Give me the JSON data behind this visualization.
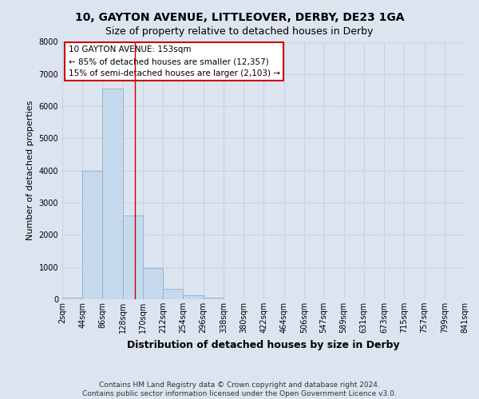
{
  "title": "10, GAYTON AVENUE, LITTLEOVER, DERBY, DE23 1GA",
  "subtitle": "Size of property relative to detached houses in Derby",
  "xlabel": "Distribution of detached houses by size in Derby",
  "ylabel": "Number of detached properties",
  "bin_edges": [
    2,
    44,
    86,
    128,
    170,
    212,
    254,
    296,
    338,
    380,
    422,
    464,
    506,
    547,
    589,
    631,
    673,
    715,
    757,
    799,
    841
  ],
  "bin_labels": [
    "2sqm",
    "44sqm",
    "86sqm",
    "128sqm",
    "170sqm",
    "212sqm",
    "254sqm",
    "296sqm",
    "338sqm",
    "380sqm",
    "422sqm",
    "464sqm",
    "506sqm",
    "547sqm",
    "589sqm",
    "631sqm",
    "673sqm",
    "715sqm",
    "757sqm",
    "799sqm",
    "841sqm"
  ],
  "counts": [
    60,
    4000,
    6550,
    2600,
    960,
    325,
    120,
    55,
    0,
    0,
    0,
    0,
    0,
    0,
    0,
    0,
    0,
    0,
    0,
    0
  ],
  "bar_color": "#c6d9ec",
  "bar_edge_color": "#8ab0cc",
  "ylim": [
    0,
    8000
  ],
  "yticks": [
    0,
    1000,
    2000,
    3000,
    4000,
    5000,
    6000,
    7000,
    8000
  ],
  "property_line_x": 153,
  "annotation_title": "10 GAYTON AVENUE: 153sqm",
  "annotation_line1": "← 85% of detached houses are smaller (12,357)",
  "annotation_line2": "15% of semi-detached houses are larger (2,103) →",
  "annotation_box_facecolor": "#ffffff",
  "annotation_box_edgecolor": "#cc0000",
  "grid_color": "#c8d4e4",
  "background_color": "#dce4f0",
  "plot_bg_color": "#dce4f0",
  "footer_line1": "Contains HM Land Registry data © Crown copyright and database right 2024.",
  "footer_line2": "Contains public sector information licensed under the Open Government Licence v3.0.",
  "title_fontsize": 10,
  "subtitle_fontsize": 9,
  "xlabel_fontsize": 9,
  "ylabel_fontsize": 8,
  "tick_fontsize": 7,
  "annotation_fontsize": 7.5,
  "footer_fontsize": 6.5
}
